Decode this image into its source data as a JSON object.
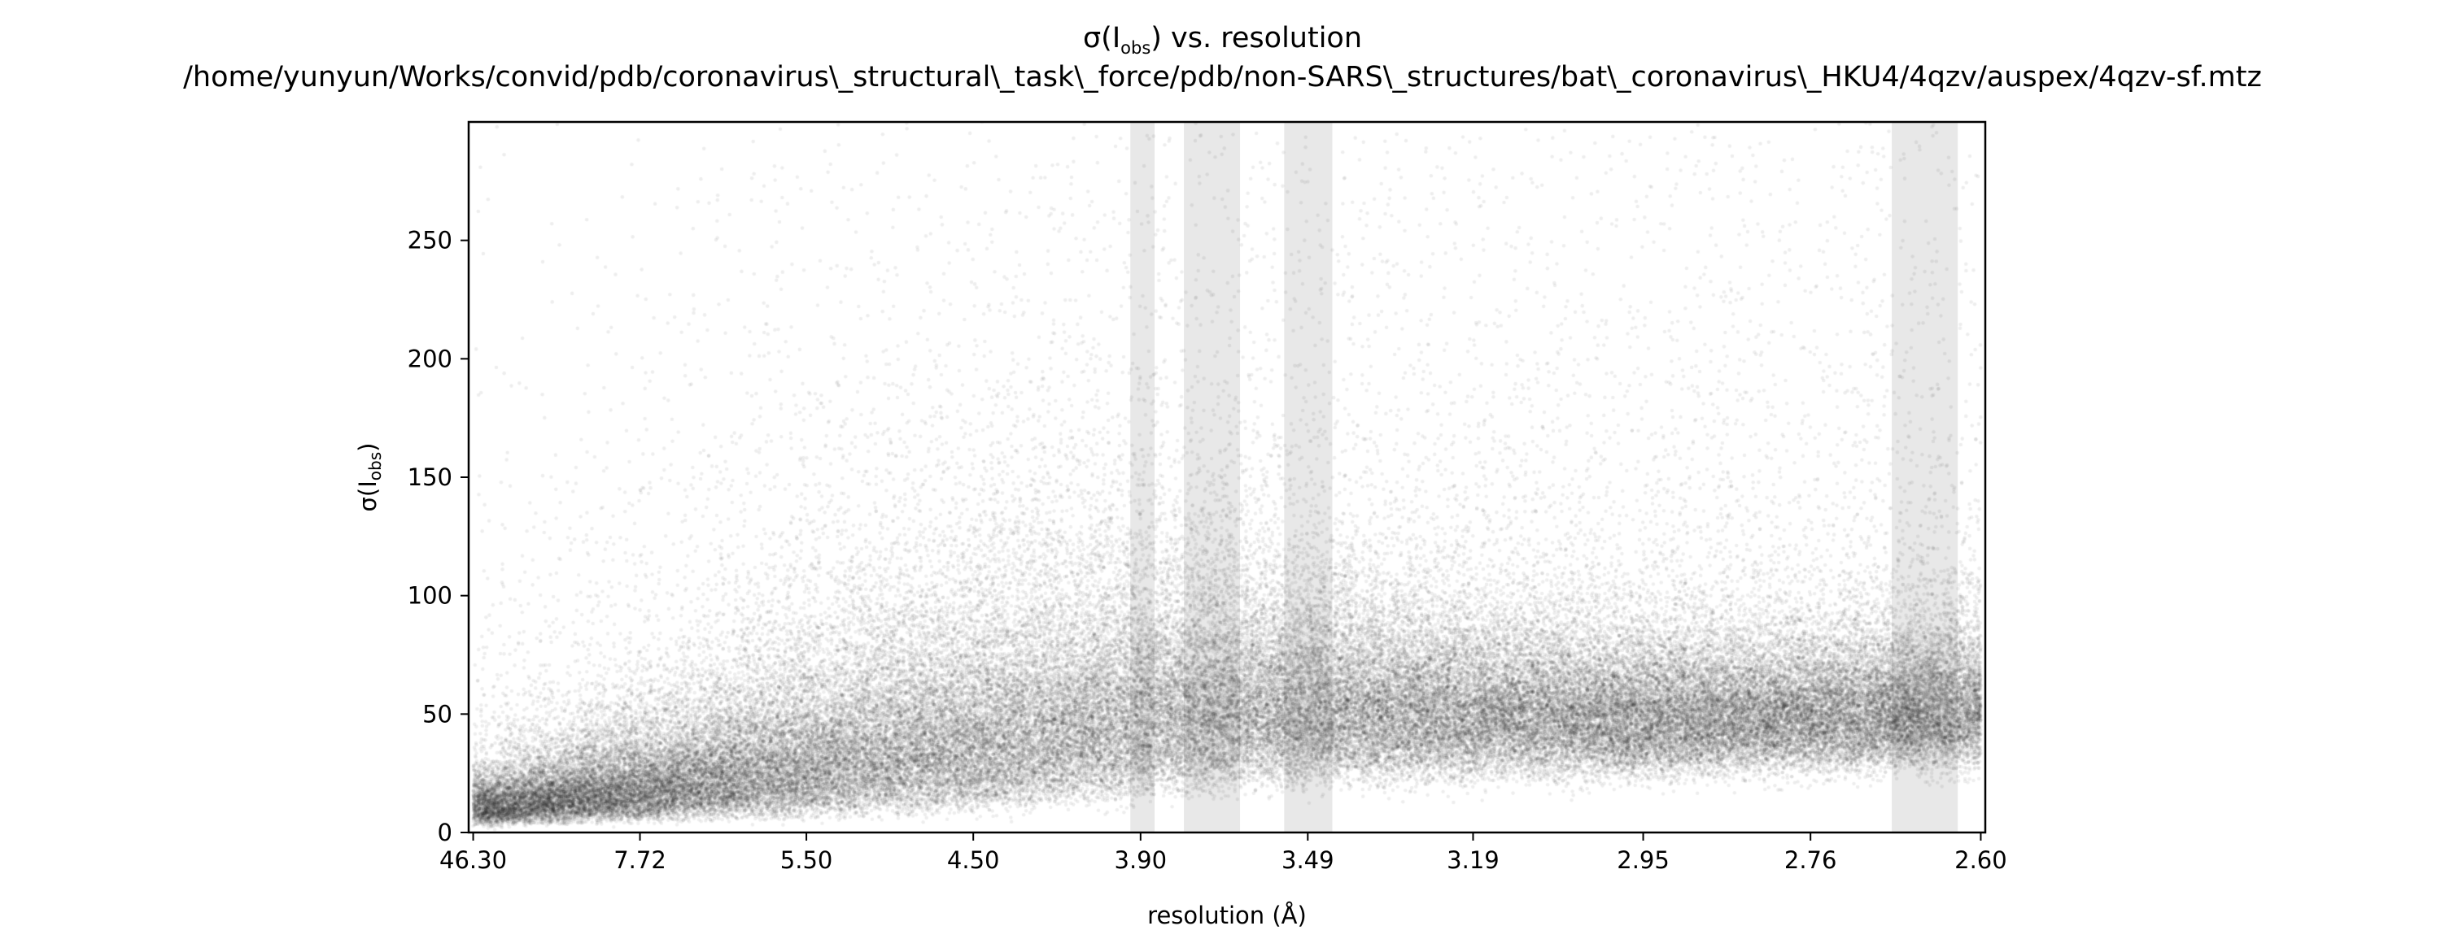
{
  "chart_data": {
    "type": "scatter",
    "title_line1_main": "σ(I",
    "title_line1_sub": "obs",
    "title_line1_tail": ") vs. resolution",
    "title_line2": "/home/yunyun/Works/convid/pdb/coronavirus\\_structural\\_task\\_force/pdb/non-SARS\\_structures/bat\\_coronavirus\\_HKU4/4qzv/auspex/4qzv-sf.mtz",
    "ylabel_main": "σ(I",
    "ylabel_sub": "obs",
    "ylabel_tail": ")",
    "xlabel": "resolution (Å)",
    "x_axis_scale": "1/d^2 (reciprocal squared resolution)",
    "x_ticks": [
      "46.30",
      "7.72",
      "5.50",
      "4.50",
      "3.90",
      "3.49",
      "3.19",
      "2.95",
      "2.76",
      "2.60"
    ],
    "x_range_resolution": [
      46.3,
      2.6
    ],
    "y_ticks": [
      0,
      50,
      100,
      150,
      200,
      250
    ],
    "ylim": [
      0,
      300
    ],
    "grid": false,
    "point_color": "#000000",
    "ice_ring_color": "#d9d9d9",
    "ice_ring_bands_resolution": [
      [
        3.93,
        3.86
      ],
      [
        3.78,
        3.64
      ],
      [
        3.54,
        3.44
      ],
      [
        2.68,
        2.62
      ]
    ],
    "trend": [
      {
        "resolution": 20.0,
        "median_sigma": 12,
        "spread": 0.55
      },
      {
        "resolution": 7.72,
        "median_sigma": 20,
        "spread": 0.55
      },
      {
        "resolution": 6.5,
        "median_sigma": 25,
        "spread": 0.55
      },
      {
        "resolution": 5.5,
        "median_sigma": 32,
        "spread": 0.6
      },
      {
        "resolution": 4.9,
        "median_sigma": 38,
        "spread": 0.6
      },
      {
        "resolution": 4.5,
        "median_sigma": 42,
        "spread": 0.6
      },
      {
        "resolution": 4.2,
        "median_sigma": 47,
        "spread": 0.55
      },
      {
        "resolution": 3.9,
        "median_sigma": 52,
        "spread": 0.5
      },
      {
        "resolution": 3.7,
        "median_sigma": 55,
        "spread": 0.45
      },
      {
        "resolution": 3.49,
        "median_sigma": 55,
        "spread": 0.4
      },
      {
        "resolution": 3.19,
        "median_sigma": 52,
        "spread": 0.35
      },
      {
        "resolution": 2.95,
        "median_sigma": 50,
        "spread": 0.32
      },
      {
        "resolution": 2.76,
        "median_sigma": 51,
        "spread": 0.3
      },
      {
        "resolution": 2.6,
        "median_sigma": 54,
        "spread": 0.3
      }
    ]
  }
}
